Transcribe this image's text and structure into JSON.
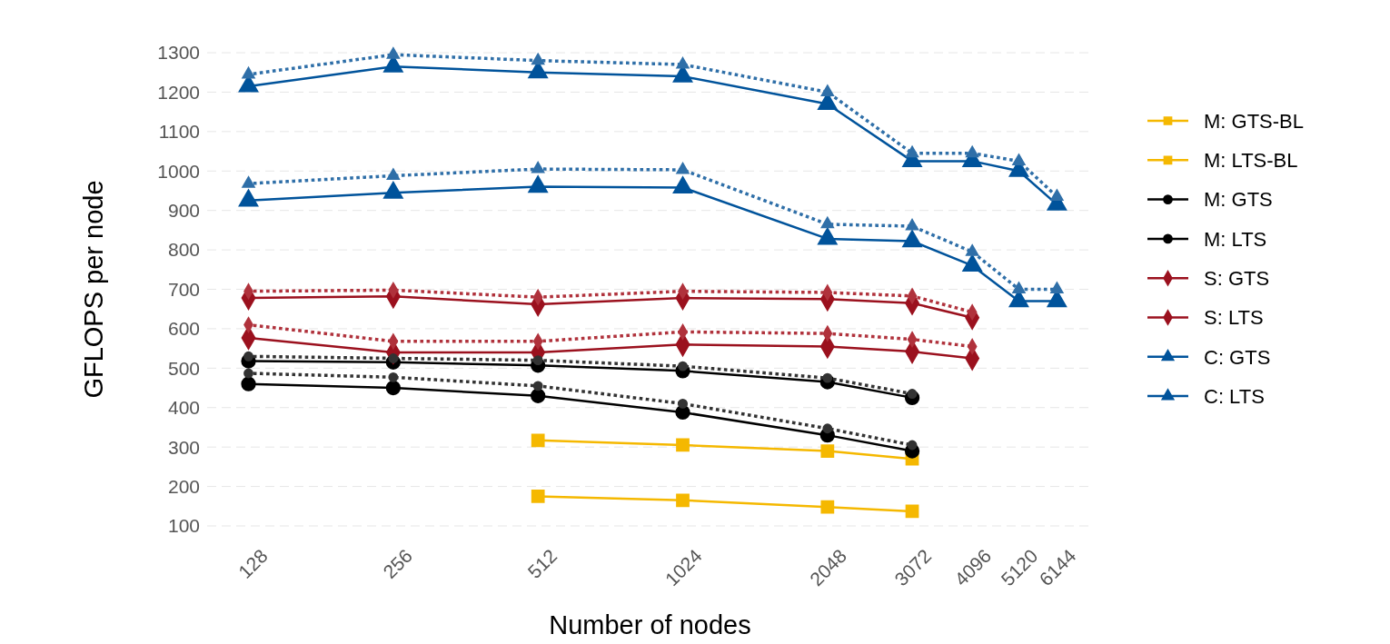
{
  "chart_data": {
    "type": "line",
    "xlabel": "Number of nodes",
    "ylabel": "GFLOPS per node",
    "log": "x",
    "xlim": [
      105,
      7300
    ],
    "xticks": [
      128,
      256,
      512,
      1024,
      2048,
      3072,
      4096,
      5120,
      6144
    ],
    "ylim": [
      100,
      1300
    ],
    "yticks": [
      100,
      200,
      300,
      400,
      500,
      600,
      700,
      800,
      900,
      1000,
      1100,
      1200,
      1300
    ],
    "grid": "y",
    "legend": "right",
    "series": [
      {
        "name": "M: GTS-BL",
        "color": "#f5b800",
        "marker": "square",
        "line_style": "solid",
        "x": [
          512,
          1024,
          2048,
          3072
        ],
        "values": [
          317,
          305,
          290,
          270
        ]
      },
      {
        "name": "M: LTS-BL",
        "color": "#f5b800",
        "marker": "square",
        "line_style": "solid",
        "x": [
          512,
          1024,
          2048,
          3072
        ],
        "values": [
          175,
          165,
          148,
          137
        ]
      },
      {
        "name": "M: GTS",
        "color": "#000000",
        "marker": "circle",
        "line_style": "solid",
        "x": [
          128,
          256,
          512,
          1024,
          2048,
          3072
        ],
        "values": [
          518,
          515,
          507,
          493,
          465,
          425
        ]
      },
      {
        "name": "M: LTS",
        "color": "#000000",
        "marker": "circle",
        "line_style": "solid",
        "x": [
          128,
          256,
          512,
          1024,
          2048,
          3072
        ],
        "values": [
          460,
          450,
          430,
          388,
          330,
          290
        ]
      },
      {
        "name": "S: GTS",
        "color": "#9b111e",
        "marker": "diamond",
        "line_style": "solid",
        "x": [
          128,
          256,
          512,
          1024,
          2048,
          3072,
          4096
        ],
        "values": [
          678,
          682,
          662,
          678,
          675,
          665,
          628
        ]
      },
      {
        "name": "S: LTS",
        "color": "#9b111e",
        "marker": "diamond",
        "line_style": "solid",
        "x": [
          128,
          256,
          512,
          1024,
          2048,
          3072,
          4096
        ],
        "values": [
          577,
          540,
          540,
          560,
          555,
          542,
          525
        ]
      },
      {
        "name": "C: GTS",
        "color": "#00539b",
        "marker": "triangle",
        "line_style": "solid",
        "x": [
          128,
          256,
          512,
          1024,
          2048,
          3072,
          4096,
          5120,
          6144
        ],
        "values": [
          1215,
          1265,
          1250,
          1240,
          1170,
          1025,
          1025,
          1000,
          915
        ]
      },
      {
        "name": "C: LTS",
        "color": "#00539b",
        "marker": "triangle",
        "line_style": "solid",
        "x": [
          128,
          256,
          512,
          1024,
          2048,
          3072,
          4096,
          5120,
          6144
        ],
        "values": [
          925,
          945,
          960,
          958,
          828,
          822,
          760,
          670,
          670
        ]
      },
      {
        "color": "#333333",
        "marker": "circle",
        "line_style": "dotted",
        "x": [
          128,
          256,
          512,
          1024,
          2048,
          3072
        ],
        "values": [
          530,
          525,
          520,
          505,
          475,
          435
        ]
      },
      {
        "color": "#333333",
        "marker": "circle",
        "line_style": "dotted",
        "x": [
          128,
          256,
          512,
          1024,
          2048,
          3072
        ],
        "values": [
          487,
          477,
          455,
          410,
          347,
          305
        ]
      },
      {
        "color": "#b0323c",
        "marker": "diamond",
        "line_style": "dotted",
        "x": [
          128,
          256,
          512,
          1024,
          2048,
          3072,
          4096
        ],
        "values": [
          695,
          698,
          680,
          695,
          692,
          683,
          642
        ]
      },
      {
        "color": "#b0323c",
        "marker": "diamond",
        "line_style": "dotted",
        "x": [
          128,
          256,
          512,
          1024,
          2048,
          3072,
          4096
        ],
        "values": [
          610,
          568,
          568,
          592,
          588,
          573,
          555
        ]
      },
      {
        "color": "#2f6fa8",
        "marker": "triangle",
        "line_style": "dotted",
        "x": [
          128,
          256,
          512,
          1024,
          2048,
          3072,
          4096,
          5120,
          6144
        ],
        "values": [
          1245,
          1295,
          1280,
          1270,
          1200,
          1045,
          1045,
          1025,
          935
        ]
      },
      {
        "color": "#2f6fa8",
        "marker": "triangle",
        "line_style": "dotted",
        "x": [
          128,
          256,
          512,
          1024,
          2048,
          3072,
          4096,
          5120,
          6144
        ],
        "values": [
          968,
          988,
          1005,
          1003,
          865,
          860,
          795,
          700,
          700
        ]
      }
    ]
  }
}
